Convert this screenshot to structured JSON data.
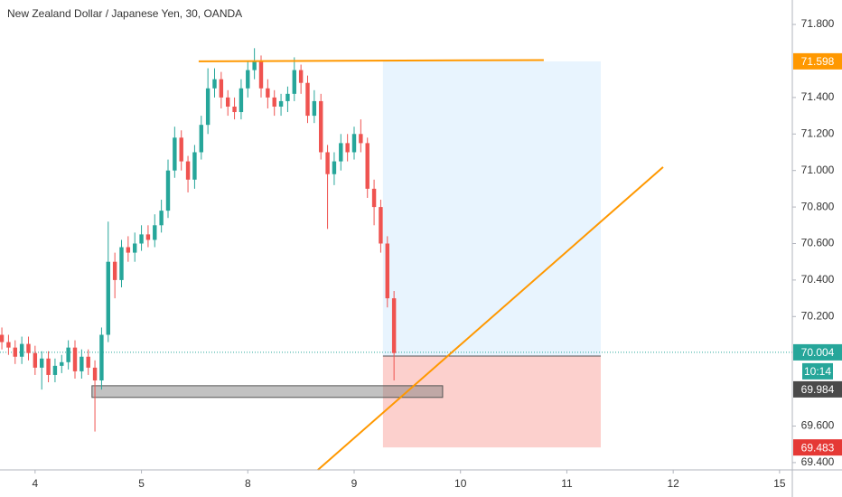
{
  "chart_data": {
    "type": "candlestick",
    "title": "New Zealand Dollar / Japanese Yen, 30, OANDA",
    "up_color": "#26a69a",
    "down_color": "#ef5350",
    "x": [
      -0.3125,
      -0.25,
      -0.1875,
      -0.125,
      -0.0625,
      0,
      0.0625,
      0.125,
      0.1875,
      0.25,
      0.3125,
      0.375,
      0.4375,
      0.5,
      0.5625,
      0.625,
      0.6875,
      0.75,
      0.8125,
      0.875,
      0.9375,
      1,
      1.0625,
      1.125,
      1.1875,
      1.25,
      1.3125,
      1.375,
      1.4375,
      1.5,
      1.5625,
      1.625,
      1.6875,
      1.75,
      1.8125,
      1.875,
      1.9375,
      2,
      2.0625,
      2.125,
      2.1875,
      2.25,
      2.3125,
      2.375,
      2.4375,
      2.5,
      2.5625,
      2.625,
      2.6875,
      2.75,
      2.8125,
      2.875,
      2.9375,
      3,
      3.0625,
      3.125,
      3.1875,
      3.25,
      3.3125,
      3.375
    ],
    "open": [
      70.1,
      70.06,
      70.03,
      69.98,
      70.05,
      70.0,
      69.92,
      69.97,
      69.88,
      69.93,
      69.95,
      70.03,
      69.9,
      69.98,
      69.92,
      69.85,
      70.1,
      70.5,
      70.4,
      70.58,
      70.55,
      70.6,
      70.65,
      70.62,
      70.7,
      70.78,
      71.0,
      71.18,
      71.05,
      70.95,
      71.1,
      71.25,
      71.45,
      71.5,
      71.4,
      71.35,
      71.32,
      71.45,
      71.55,
      71.6,
      71.45,
      71.4,
      71.35,
      71.38,
      71.42,
      71.55,
      71.48,
      71.3,
      71.38,
      71.1,
      70.98,
      71.05,
      71.15,
      71.1,
      71.2,
      71.15,
      70.9,
      70.8,
      70.6,
      70.3
    ],
    "high": [
      70.14,
      70.1,
      70.07,
      70.09,
      70.09,
      70.04,
      70.01,
      70.01,
      69.97,
      69.99,
      70.07,
      70.07,
      70.02,
      70.02,
      69.96,
      70.14,
      70.72,
      70.55,
      70.62,
      70.64,
      70.66,
      70.7,
      70.7,
      70.76,
      70.84,
      71.06,
      71.24,
      71.22,
      71.08,
      71.14,
      71.3,
      71.56,
      71.56,
      71.54,
      71.44,
      71.4,
      71.5,
      71.6,
      71.67,
      71.63,
      71.5,
      71.44,
      71.42,
      71.46,
      71.62,
      71.58,
      71.52,
      71.44,
      71.42,
      71.14,
      71.1,
      71.2,
      71.2,
      71.24,
      71.28,
      71.18,
      70.95,
      70.84,
      70.64,
      70.34
    ],
    "low": [
      70.02,
      69.99,
      69.94,
      69.94,
      69.96,
      69.88,
      69.8,
      69.84,
      69.84,
      69.89,
      69.91,
      69.86,
      69.86,
      69.88,
      69.57,
      69.8,
      70.06,
      70.3,
      70.36,
      70.5,
      70.5,
      70.56,
      70.58,
      70.58,
      70.66,
      70.74,
      70.96,
      71.0,
      70.88,
      70.9,
      71.06,
      71.2,
      71.4,
      71.34,
      71.3,
      71.28,
      71.28,
      71.4,
      71.5,
      71.4,
      71.34,
      71.3,
      71.3,
      71.32,
      71.38,
      71.42,
      71.26,
      71.26,
      71.06,
      70.68,
      70.92,
      71.0,
      71.05,
      71.06,
      71.1,
      70.85,
      70.7,
      70.55,
      70.25,
      69.85
    ],
    "close": [
      70.06,
      70.03,
      69.98,
      70.05,
      70.0,
      69.92,
      69.97,
      69.88,
      69.93,
      69.95,
      70.03,
      69.9,
      69.98,
      69.92,
      69.85,
      70.1,
      70.5,
      70.4,
      70.58,
      70.55,
      70.6,
      70.65,
      70.62,
      70.7,
      70.78,
      71.0,
      71.18,
      71.05,
      70.95,
      71.1,
      71.25,
      71.45,
      71.5,
      71.4,
      71.35,
      71.32,
      71.45,
      71.55,
      71.6,
      71.45,
      71.4,
      71.35,
      71.38,
      71.42,
      71.55,
      71.48,
      71.3,
      71.38,
      71.1,
      70.98,
      71.05,
      71.15,
      71.1,
      71.2,
      71.15,
      70.9,
      70.8,
      70.6,
      70.3,
      70.0
    ],
    "xlim": [
      -0.33,
      7.12
    ],
    "ylim": [
      69.36,
      71.934
    ],
    "xticks": [
      {
        "value": 0,
        "label": "4"
      },
      {
        "value": 1,
        "label": "5"
      },
      {
        "value": 2,
        "label": "8"
      },
      {
        "value": 3,
        "label": "9"
      },
      {
        "value": 4,
        "label": "10"
      },
      {
        "value": 5,
        "label": "11"
      },
      {
        "value": 6,
        "label": "12"
      },
      {
        "value": 7,
        "label": "15"
      }
    ],
    "yticks": [
      {
        "value": 69.4,
        "label": "69.400"
      },
      {
        "value": 69.6,
        "label": "69.600"
      },
      {
        "value": 70.2,
        "label": "70.200"
      },
      {
        "value": 70.4,
        "label": "70.400"
      },
      {
        "value": 70.6,
        "label": "70.600"
      },
      {
        "value": 70.8,
        "label": "70.800"
      },
      {
        "value": 71,
        "label": "71.000"
      },
      {
        "value": 71.2,
        "label": "71.200"
      },
      {
        "value": 71.4,
        "label": "71.400"
      },
      {
        "value": 71.8,
        "label": "71.800"
      }
    ],
    "price_labels": [
      {
        "value": 71.598,
        "color": "#ff9800"
      },
      {
        "value": 70.004,
        "color": "#26a69a"
      },
      {
        "value": 69.984,
        "color": "#4a4a4a"
      },
      {
        "value": 69.483,
        "color": "#e53935"
      }
    ],
    "countdown": "10:14",
    "lines": [
      {
        "x": [
          1.538,
          4.783
        ],
        "y": [
          71.598,
          71.605
        ],
        "color": "#ff9800"
      },
      {
        "x": [
          2.659,
          5.905
        ],
        "y": [
          69.36,
          71.019
        ],
        "color": "#ff9800"
      }
    ],
    "position": {
      "x": [
        3.271,
        5.319
      ],
      "target": 71.598,
      "entry": 69.984,
      "stop": 69.483
    },
    "rectangle": {
      "x": [
        0.535,
        3.832
      ],
      "y": [
        69.757,
        69.821
      ]
    }
  }
}
